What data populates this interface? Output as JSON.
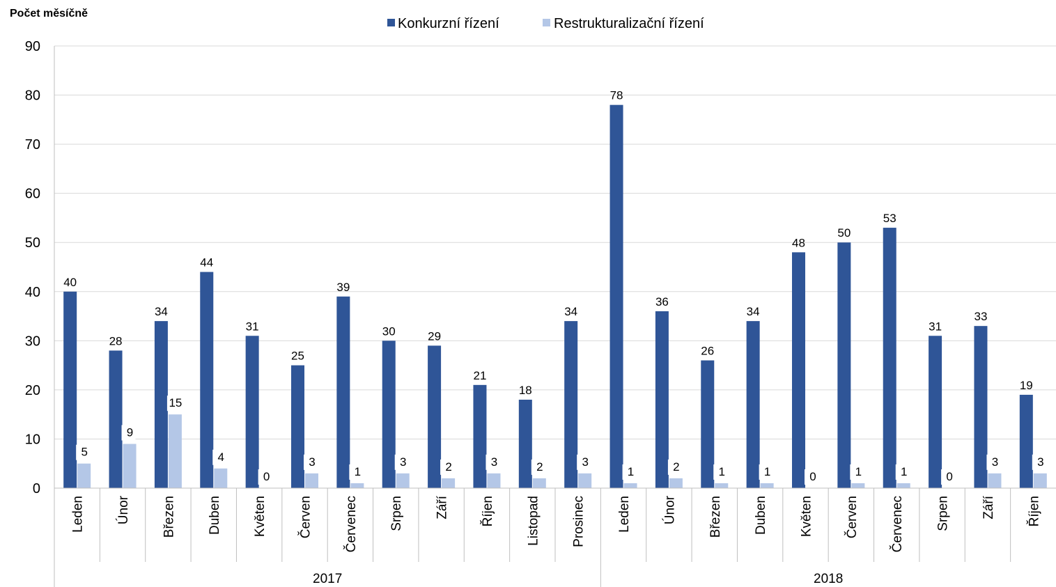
{
  "chart_data": {
    "type": "bar",
    "ylabel": "Počet měsíčně",
    "ylim": [
      0,
      90
    ],
    "yticks": [
      0,
      10,
      20,
      30,
      40,
      50,
      60,
      70,
      80,
      90
    ],
    "grid": true,
    "legend_position": "top-center",
    "groups": [
      {
        "label": "2017",
        "count": 12
      },
      {
        "label": "2018",
        "count": 10
      }
    ],
    "categories": [
      "Leden",
      "Únor",
      "Březen",
      "Duben",
      "Květen",
      "Červen",
      "Červenec",
      "Srpen",
      "Září",
      "Říjen",
      "Listopad",
      "Prosinec",
      "Leden",
      "Únor",
      "Březen",
      "Duben",
      "Květen",
      "Červen",
      "Červenec",
      "Srpen",
      "Září",
      "Říjen"
    ],
    "series": [
      {
        "name": "Konkurzní řízení",
        "color": "#2F5597",
        "values": [
          40,
          28,
          34,
          44,
          31,
          25,
          39,
          30,
          29,
          21,
          18,
          34,
          78,
          36,
          26,
          34,
          48,
          50,
          53,
          31,
          33,
          19
        ]
      },
      {
        "name": "Restrukturalizační řízení",
        "color": "#B4C7E7",
        "values": [
          5,
          9,
          15,
          4,
          0,
          3,
          1,
          3,
          2,
          3,
          2,
          3,
          1,
          2,
          1,
          1,
          0,
          1,
          1,
          0,
          3,
          3
        ]
      }
    ]
  }
}
